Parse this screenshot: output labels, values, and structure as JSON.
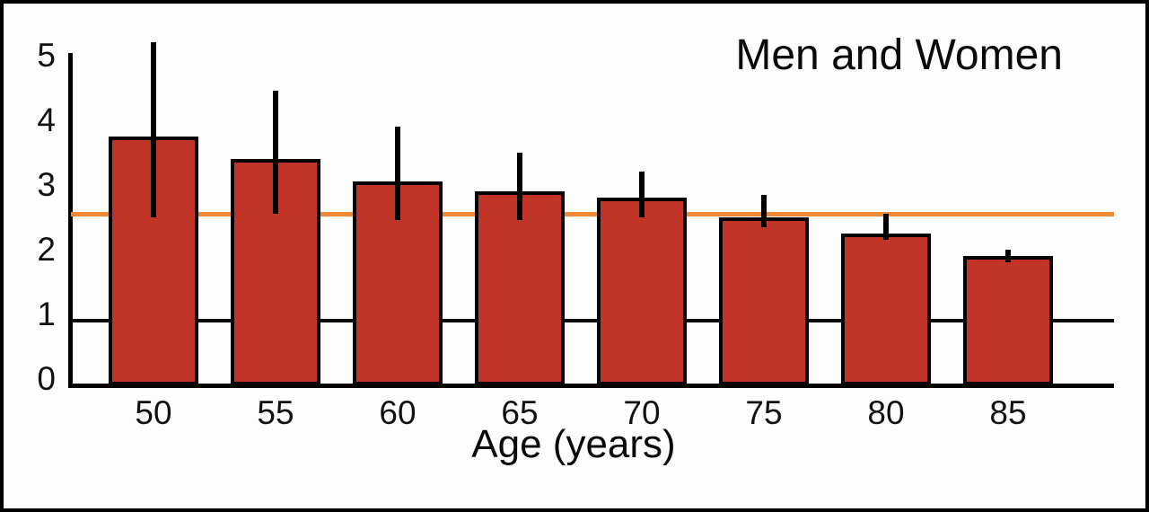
{
  "chart_data": {
    "type": "bar",
    "title": "Men and Women",
    "xlabel": "Age (years)",
    "ylabel": "",
    "categories": [
      "50",
      "55",
      "60",
      "65",
      "70",
      "75",
      "80",
      "85"
    ],
    "values": [
      3.85,
      3.5,
      3.15,
      3.0,
      2.9,
      2.6,
      2.35,
      2.0
    ],
    "error_low": [
      2.6,
      2.65,
      2.55,
      2.55,
      2.6,
      2.45,
      2.25,
      1.9
    ],
    "error_high": [
      5.3,
      4.55,
      4.0,
      3.6,
      3.3,
      2.95,
      2.65,
      2.1
    ],
    "yticks": [
      0,
      1,
      2,
      3,
      4,
      5
    ],
    "ylim": [
      0,
      5.15
    ],
    "grid": "single horizontal black line at y=1",
    "gridline_y": 1,
    "reference_line_y": 2.65,
    "legend": "none",
    "bar_color": "#C23328",
    "bar_outline_color": "#000000",
    "error_bar_color": "#000000",
    "reference_line_color": "#EE8A35",
    "axis_color": "#000000"
  }
}
